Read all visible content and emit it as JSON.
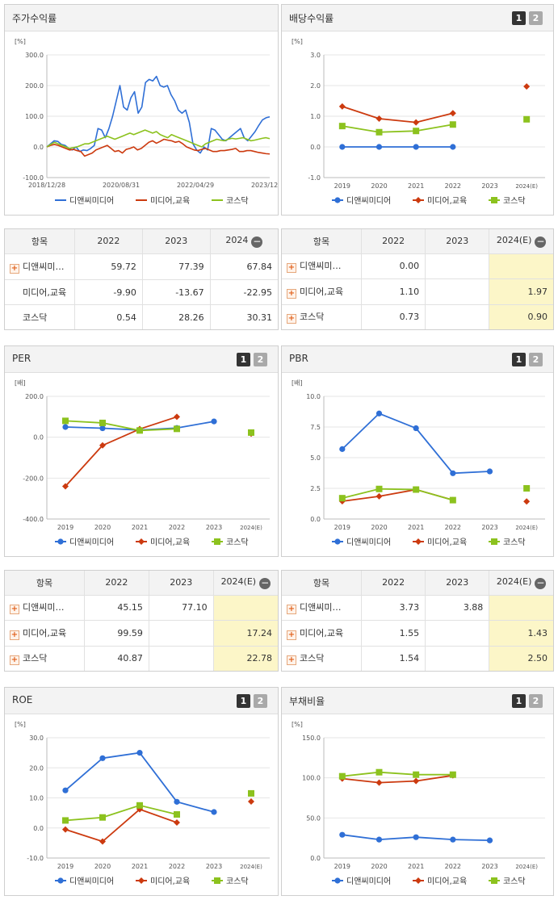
{
  "colors": {
    "blue": "#2f6fd6",
    "red": "#cc3a0f",
    "green": "#8cc21e"
  },
  "legend": [
    "디앤씨미디어",
    "미디어,교육",
    "코스닥"
  ],
  "chart_data": [
    {
      "id": "stock_return",
      "type": "line",
      "title": "주가수익률",
      "unit": "[%]",
      "x_labels": [
        "2018/12/28",
        "2020/08/31",
        "2022/04/29",
        "2023/12/28"
      ],
      "y_ticks": [
        "300.0",
        "200.0",
        "100.0",
        "0.0",
        "-100.0"
      ],
      "ylim": [
        -100,
        300
      ],
      "series": [
        {
          "name": "디앤씨미디어",
          "color": "#2f6fd6",
          "values": [
            0,
            10,
            20,
            18,
            8,
            5,
            -5,
            -10,
            0,
            -15,
            -10,
            -12,
            -5,
            5,
            60,
            55,
            30,
            60,
            100,
            150,
            200,
            130,
            120,
            160,
            180,
            110,
            130,
            210,
            220,
            215,
            230,
            200,
            195,
            200,
            170,
            150,
            120,
            110,
            120,
            80,
            10,
            -10,
            -20,
            0,
            -10,
            60,
            55,
            40,
            25,
            20,
            30,
            40,
            50,
            60,
            30,
            20,
            35,
            50,
            70,
            88,
            95,
            98
          ]
        },
        {
          "name": "미디어,교육",
          "color": "#cc3a0f",
          "values": [
            0,
            5,
            8,
            5,
            0,
            -5,
            -10,
            -8,
            -12,
            -15,
            -30,
            -25,
            -20,
            -10,
            -5,
            0,
            5,
            -5,
            -15,
            -12,
            -20,
            -8,
            -5,
            0,
            -10,
            -5,
            5,
            15,
            20,
            12,
            18,
            25,
            22,
            20,
            15,
            18,
            10,
            0,
            -5,
            -10,
            -12,
            -8,
            -5,
            -10,
            -15,
            -15,
            -12,
            -12,
            -10,
            -8,
            -5,
            -15,
            -15,
            -12,
            -12,
            -15,
            -18,
            -20,
            -22,
            -23
          ]
        },
        {
          "name": "코스닥",
          "color": "#8cc21e",
          "values": [
            0,
            8,
            15,
            10,
            5,
            0,
            -5,
            -2,
            0,
            5,
            10,
            10,
            15,
            20,
            25,
            30,
            35,
            30,
            25,
            30,
            35,
            40,
            45,
            40,
            45,
            50,
            55,
            50,
            45,
            50,
            40,
            35,
            30,
            40,
            35,
            30,
            25,
            20,
            15,
            10,
            5,
            0,
            10,
            15,
            20,
            25,
            22,
            20,
            25,
            28,
            26,
            28,
            30,
            25,
            20,
            22,
            25,
            28,
            30,
            27
          ]
        }
      ]
    },
    {
      "id": "dividend_yield",
      "type": "line",
      "title": "배당수익률",
      "unit": "[%]",
      "categories": [
        "2019",
        "2020",
        "2021",
        "2022",
        "2023",
        "2024(E)"
      ],
      "y_ticks": [
        "3.0",
        "2.0",
        "1.0",
        "0.0",
        "-1.0"
      ],
      "ylim": [
        -1,
        3
      ],
      "series": [
        {
          "name": "디앤씨미디어",
          "color": "#2f6fd6",
          "values": [
            0.0,
            0.0,
            0.0,
            0.0,
            null,
            null
          ]
        },
        {
          "name": "미디어,교육",
          "color": "#cc3a0f",
          "values": [
            1.32,
            0.92,
            0.8,
            1.1,
            null,
            1.97
          ]
        },
        {
          "name": "코스닥",
          "color": "#8cc21e",
          "values": [
            0.68,
            0.48,
            0.52,
            0.73,
            null,
            0.9
          ]
        }
      ]
    },
    {
      "id": "per",
      "type": "line",
      "title": "PER",
      "unit": "[배]",
      "categories": [
        "2019",
        "2020",
        "2021",
        "2022",
        "2023",
        "2024(E)"
      ],
      "y_ticks": [
        "200.0",
        "0.0",
        "-200.0",
        "-400.0"
      ],
      "ylim": [
        -400,
        200
      ],
      "series": [
        {
          "name": "디앤씨미디어",
          "color": "#2f6fd6",
          "values": [
            50,
            44,
            35,
            45.15,
            77.1,
            null
          ]
        },
        {
          "name": "미디어,교육",
          "color": "#cc3a0f",
          "values": [
            -240,
            -40,
            40,
            99.59,
            null,
            17.24
          ]
        },
        {
          "name": "코스닥",
          "color": "#8cc21e",
          "values": [
            80,
            70,
            33,
            40.87,
            null,
            22.78
          ]
        }
      ]
    },
    {
      "id": "pbr",
      "type": "line",
      "title": "PBR",
      "unit": "[배]",
      "categories": [
        "2019",
        "2020",
        "2021",
        "2022",
        "2023",
        "2024(E)"
      ],
      "y_ticks": [
        "10.0",
        "7.5",
        "5.0",
        "2.5",
        "0.0"
      ],
      "ylim": [
        0,
        10
      ],
      "series": [
        {
          "name": "디앤씨미디어",
          "color": "#2f6fd6",
          "values": [
            5.7,
            8.6,
            7.4,
            3.73,
            3.88,
            null
          ]
        },
        {
          "name": "미디어,교육",
          "color": "#cc3a0f",
          "values": [
            1.45,
            1.85,
            2.4,
            1.55,
            null,
            1.43
          ]
        },
        {
          "name": "코스닥",
          "color": "#8cc21e",
          "values": [
            1.7,
            2.45,
            2.4,
            1.54,
            null,
            2.5
          ]
        }
      ]
    },
    {
      "id": "roe",
      "type": "line",
      "title": "ROE",
      "unit": "[%]",
      "categories": [
        "2019",
        "2020",
        "2021",
        "2022",
        "2023",
        "2024(E)"
      ],
      "y_ticks": [
        "30.0",
        "20.0",
        "10.0",
        "0.0",
        "-10.0"
      ],
      "ylim": [
        -10,
        30
      ],
      "series": [
        {
          "name": "디앤씨미디어",
          "color": "#2f6fd6",
          "values": [
            12.5,
            23.2,
            25.0,
            8.7,
            5.3,
            null
          ]
        },
        {
          "name": "미디어,교육",
          "color": "#cc3a0f",
          "values": [
            -0.5,
            -4.5,
            6.2,
            1.8,
            null,
            8.8
          ]
        },
        {
          "name": "코스닥",
          "color": "#8cc21e",
          "values": [
            2.5,
            3.5,
            7.5,
            4.5,
            null,
            11.5
          ]
        }
      ]
    },
    {
      "id": "debt_ratio",
      "type": "line",
      "title": "부채비율",
      "unit": "[%]",
      "categories": [
        "2019",
        "2020",
        "2021",
        "2022",
        "2023",
        "2024(E)"
      ],
      "y_ticks": [
        "150.0",
        "100.0",
        "50.0",
        "0.0"
      ],
      "ylim": [
        0,
        150
      ],
      "series": [
        {
          "name": "디앤씨미디어",
          "color": "#2f6fd6",
          "values": [
            29,
            23,
            26,
            23,
            22,
            null
          ]
        },
        {
          "name": "미디어,교육",
          "color": "#cc3a0f",
          "values": [
            99,
            94,
            96,
            103,
            null,
            null
          ]
        },
        {
          "name": "코스닥",
          "color": "#8cc21e",
          "values": [
            102,
            107,
            104,
            104,
            null,
            null
          ]
        }
      ]
    }
  ],
  "tables": {
    "stock_return": {
      "headers": [
        "항목",
        "2022",
        "2023",
        "2024"
      ],
      "rows": [
        {
          "name": "디앤씨미…",
          "plus": true,
          "cells": [
            "59.72",
            "77.39",
            "67.84"
          ]
        },
        {
          "name": "미디어,교육",
          "plus": false,
          "cells": [
            "-9.90",
            "-13.67",
            "-22.95"
          ]
        },
        {
          "name": "코스닥",
          "plus": false,
          "cells": [
            "0.54",
            "28.26",
            "30.31"
          ]
        }
      ]
    },
    "dividend_yield": {
      "headers": [
        "항목",
        "2022",
        "2023",
        "2024(E)"
      ],
      "rows": [
        {
          "name": "디앤씨미…",
          "plus": true,
          "cells": [
            "0.00",
            "",
            ""
          ]
        },
        {
          "name": "미디어,교육",
          "plus": true,
          "cells": [
            "1.10",
            "",
            "1.97"
          ]
        },
        {
          "name": "코스닥",
          "plus": true,
          "cells": [
            "0.73",
            "",
            "0.90"
          ]
        }
      ]
    },
    "per": {
      "headers": [
        "항목",
        "2022",
        "2023",
        "2024(E)"
      ],
      "rows": [
        {
          "name": "디앤씨미…",
          "plus": true,
          "cells": [
            "45.15",
            "77.10",
            ""
          ]
        },
        {
          "name": "미디어,교육",
          "plus": true,
          "cells": [
            "99.59",
            "",
            "17.24"
          ]
        },
        {
          "name": "코스닥",
          "plus": true,
          "cells": [
            "40.87",
            "",
            "22.78"
          ]
        }
      ]
    },
    "pbr": {
      "headers": [
        "항목",
        "2022",
        "2023",
        "2024(E)"
      ],
      "rows": [
        {
          "name": "디앤씨미…",
          "plus": true,
          "cells": [
            "3.73",
            "3.88",
            ""
          ]
        },
        {
          "name": "미디어,교육",
          "plus": true,
          "cells": [
            "1.55",
            "",
            "1.43"
          ]
        },
        {
          "name": "코스닥",
          "plus": true,
          "cells": [
            "1.54",
            "",
            "2.50"
          ]
        }
      ]
    }
  },
  "toggle": {
    "one": "1",
    "two": "2"
  }
}
